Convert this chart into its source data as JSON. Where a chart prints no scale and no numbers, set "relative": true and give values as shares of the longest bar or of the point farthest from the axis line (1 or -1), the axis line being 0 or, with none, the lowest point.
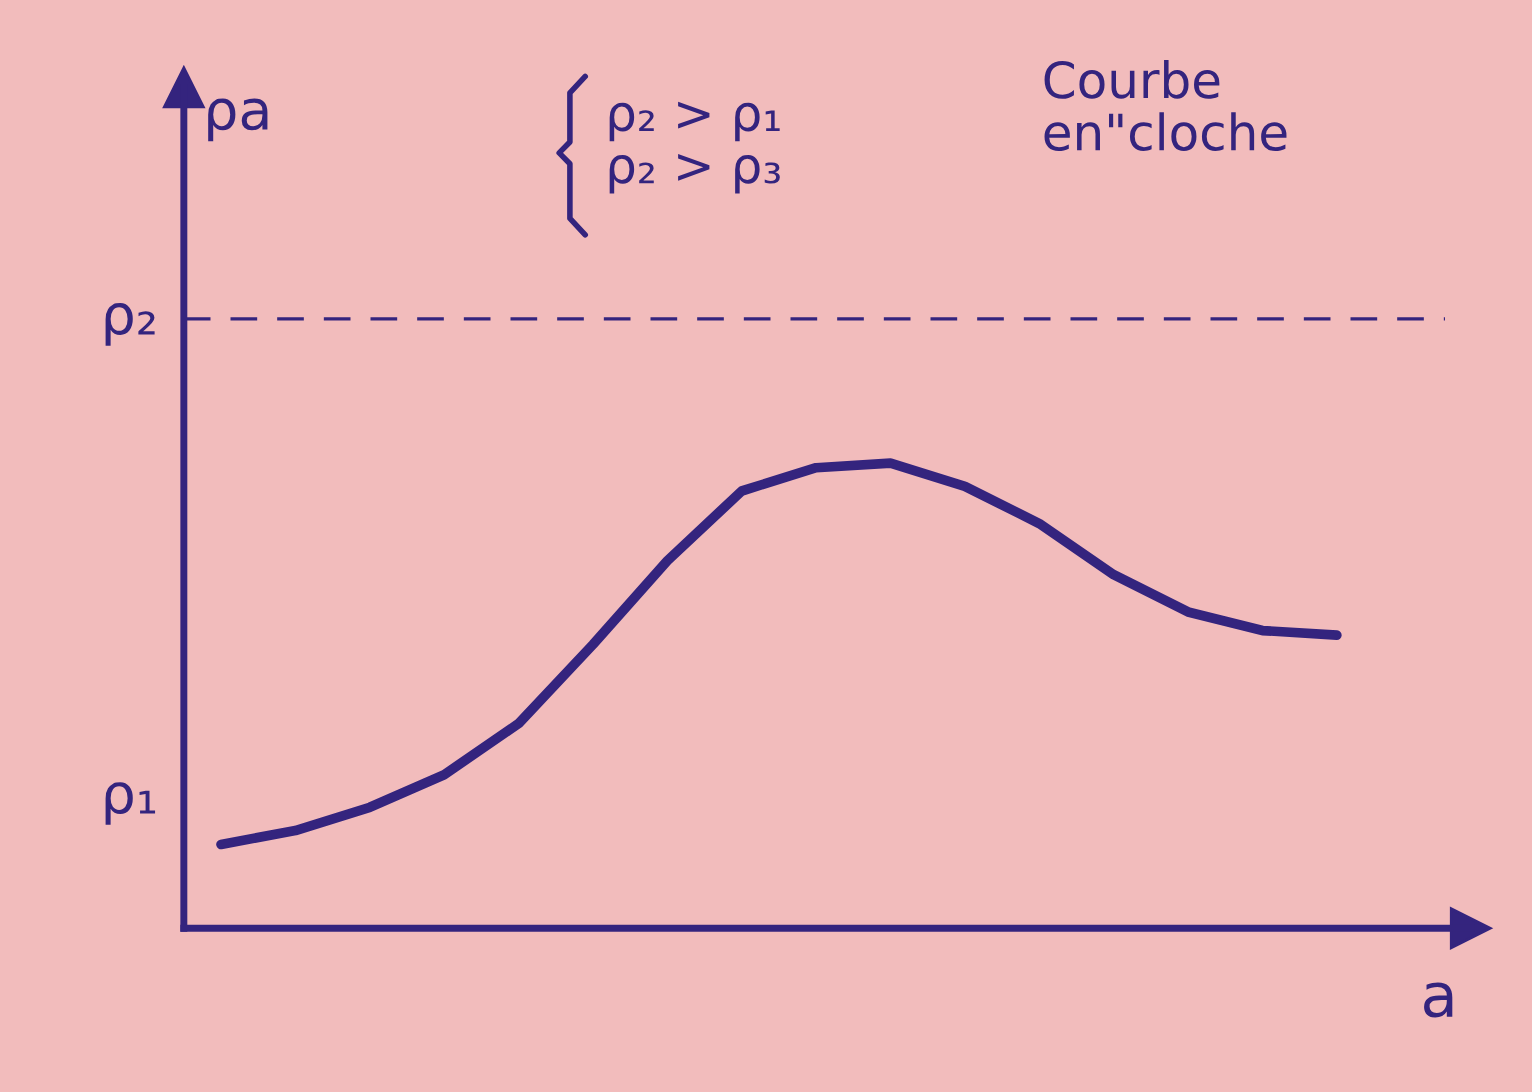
{
  "chart_data": {
    "type": "line",
    "relative": true,
    "xlabel": "a",
    "categories": [
      null,
      null,
      null,
      null,
      null,
      null,
      null,
      null,
      null,
      null,
      null,
      null,
      null,
      null,
      null,
      null
    ],
    "series": [
      {
        "color": "#34247e",
        "values": [
          0.18,
          0.21,
          0.26,
          0.33,
          0.44,
          0.61,
          0.79,
          0.94,
          0.99,
          1.0,
          0.95,
          0.87,
          0.76,
          0.68,
          0.64,
          0.63
        ]
      }
    ],
    "ref_lines": [
      {
        "axis": "y",
        "value": 1.31,
        "label": "ρ₂",
        "color": "#34247e",
        "line_style": "dashed"
      }
    ],
    "annotations": [
      "ρa",
      "ρ₁",
      "ρ₂ > ρ₁\nρ₂ > ρ₃",
      "Courbe\nen\"cloche"
    ],
    "marker": "none",
    "line_style": "solid"
  }
}
